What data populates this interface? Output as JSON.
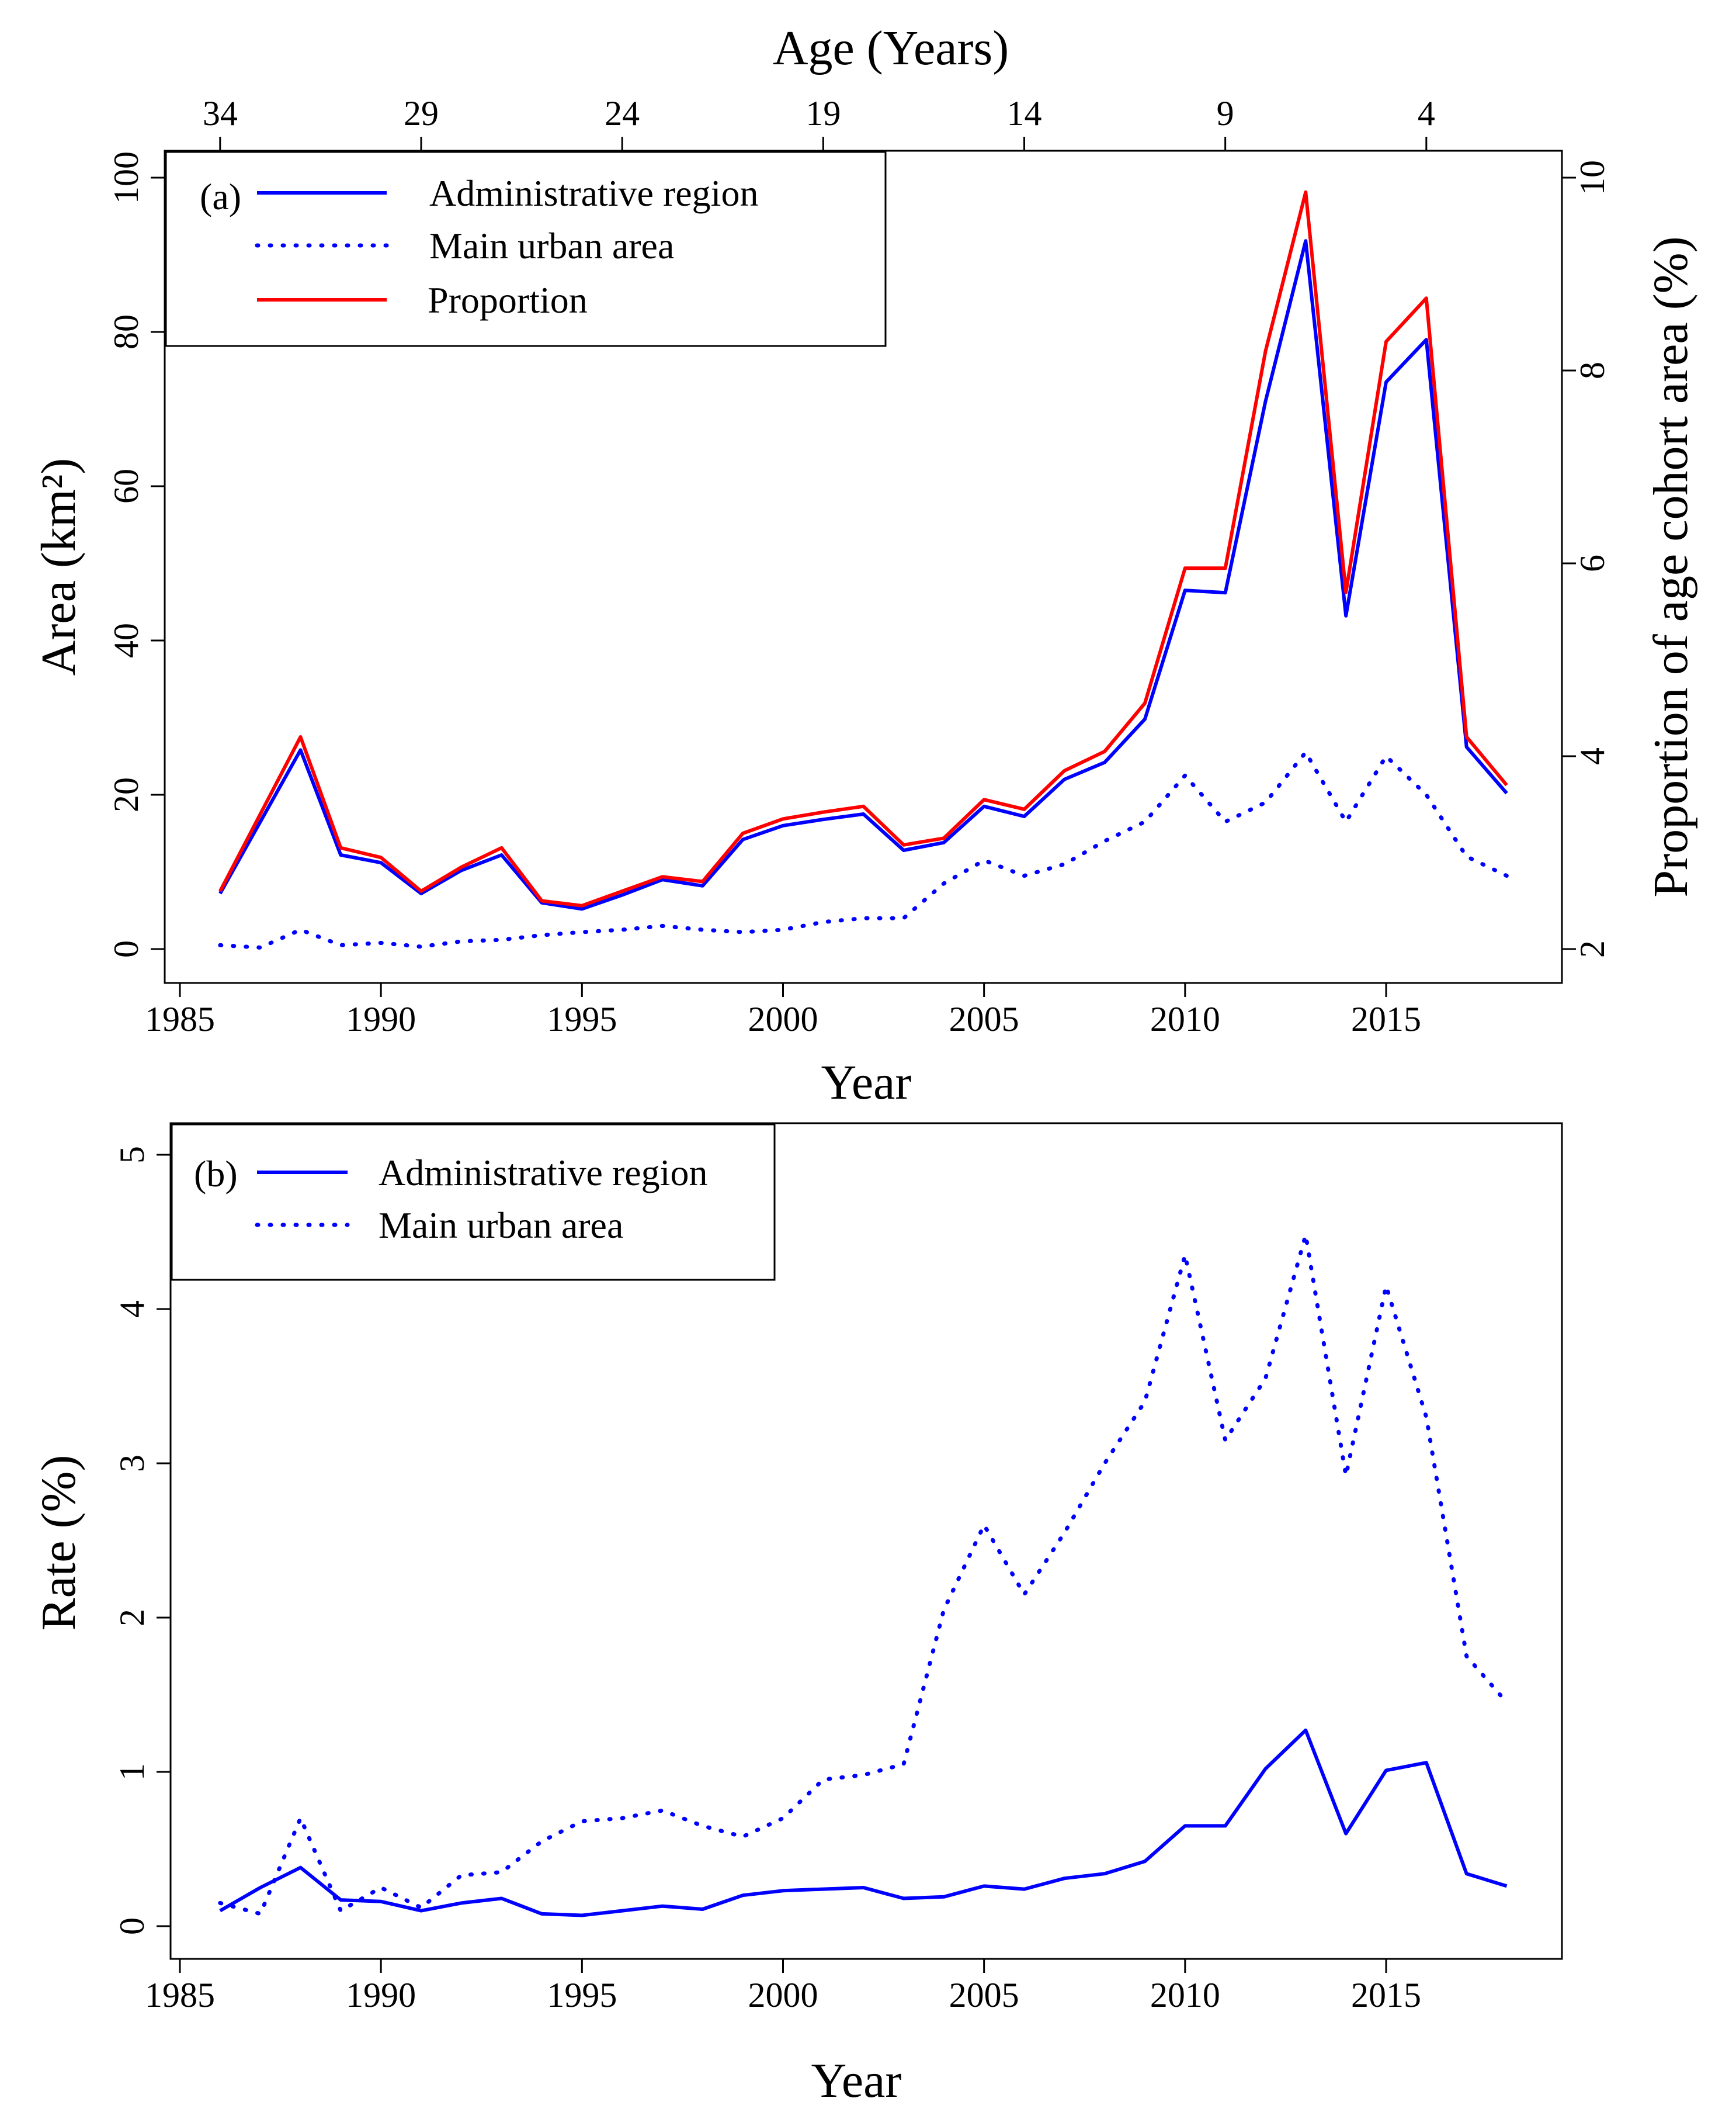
{
  "chart_data": [
    {
      "panel": "a",
      "type": "line",
      "panel_label": "(a)",
      "x": [
        1986,
        1987,
        1988,
        1989,
        1990,
        1991,
        1992,
        1993,
        1994,
        1995,
        1996,
        1997,
        1998,
        1999,
        2000,
        2001,
        2002,
        2003,
        2004,
        2005,
        2006,
        2007,
        2008,
        2009,
        2010,
        2011,
        2012,
        2013,
        2014,
        2015,
        2016,
        2017,
        2018
      ],
      "xlabel": "Year",
      "xlim": [
        1985,
        2018
      ],
      "xticks": [
        1985,
        1990,
        1995,
        2000,
        2005,
        2010,
        2015
      ],
      "top_axis": {
        "label": "Age (Years)",
        "ticks": [
          {
            "year": 1986,
            "label": "34"
          },
          {
            "year": 1991,
            "label": "29"
          },
          {
            "year": 1996,
            "label": "24"
          },
          {
            "year": 2001,
            "label": "19"
          },
          {
            "year": 2006,
            "label": "14"
          },
          {
            "year": 2011,
            "label": "9"
          },
          {
            "year": 2016,
            "label": "4"
          }
        ]
      },
      "ylabel": "Area (km²)",
      "ylim": [
        0,
        100
      ],
      "yticks": [
        0,
        20,
        40,
        60,
        80,
        100
      ],
      "y2label": "Proportion of age cohort area (%)",
      "y2lim": [
        2,
        10
      ],
      "y2ticks": [
        2,
        4,
        6,
        8,
        10
      ],
      "series": [
        {
          "name": "Administrative region",
          "style": "solid",
          "color": "#0000ff",
          "axis": "left",
          "values": [
            7.2,
            16.5,
            25.8,
            12.2,
            11.2,
            7.2,
            10.2,
            12.2,
            6.0,
            5.2,
            7.0,
            9.0,
            8.2,
            14.2,
            16.0,
            16.8,
            17.5,
            12.8,
            13.8,
            18.5,
            17.2,
            22.0,
            24.2,
            29.8,
            46.5,
            46.2,
            71.0,
            91.8,
            43.2,
            73.5,
            79.0,
            26.2,
            20.2
          ]
        },
        {
          "name": "Main urban area",
          "style": "dotted",
          "color": "#0000ff",
          "axis": "left",
          "values": [
            0.5,
            0.2,
            2.5,
            0.5,
            0.8,
            0.3,
            1.0,
            1.2,
            1.8,
            2.2,
            2.5,
            3.0,
            2.5,
            2.2,
            2.5,
            3.5,
            4.0,
            4.0,
            8.5,
            11.5,
            9.5,
            11.0,
            14.0,
            16.5,
            22.5,
            16.5,
            19.0,
            25.5,
            16.5,
            25.0,
            20.0,
            12.0,
            9.5
          ]
        },
        {
          "name": "Proportion",
          "style": "solid",
          "color": "#ff0000",
          "axis": "right",
          "values": [
            2.6,
            3.4,
            4.2,
            3.05,
            2.95,
            2.6,
            2.85,
            3.05,
            2.5,
            2.45,
            2.6,
            2.75,
            2.7,
            3.2,
            3.35,
            3.42,
            3.48,
            3.08,
            3.15,
            3.55,
            3.45,
            3.85,
            4.05,
            4.55,
            5.95,
            5.95,
            8.2,
            9.85,
            5.7,
            8.3,
            8.75,
            4.2,
            3.7
          ]
        }
      ],
      "legend": {
        "position": "top-left",
        "entries": [
          "Administrative region",
          "Main urban area",
          "Proportion"
        ]
      }
    },
    {
      "panel": "b",
      "type": "line",
      "panel_label": "(b)",
      "x": [
        1986,
        1987,
        1988,
        1989,
        1990,
        1991,
        1992,
        1993,
        1994,
        1995,
        1996,
        1997,
        1998,
        1999,
        2000,
        2001,
        2002,
        2003,
        2004,
        2005,
        2006,
        2007,
        2008,
        2009,
        2010,
        2011,
        2012,
        2013,
        2014,
        2015,
        2016,
        2017,
        2018
      ],
      "xlabel": "Year",
      "xlim": [
        1985,
        2018
      ],
      "xticks": [
        1985,
        1990,
        1995,
        2000,
        2005,
        2010,
        2015
      ],
      "ylabel": "Rate (%)",
      "ylim": [
        0,
        5
      ],
      "yticks": [
        0,
        1,
        2,
        3,
        4,
        5
      ],
      "series": [
        {
          "name": "Administrative region",
          "style": "solid",
          "color": "#0000ff",
          "values": [
            0.1,
            0.25,
            0.38,
            0.17,
            0.16,
            0.1,
            0.15,
            0.18,
            0.08,
            0.07,
            0.1,
            0.13,
            0.11,
            0.2,
            0.23,
            0.24,
            0.25,
            0.18,
            0.19,
            0.26,
            0.24,
            0.31,
            0.34,
            0.42,
            0.65,
            0.65,
            1.02,
            1.27,
            0.6,
            1.01,
            1.06,
            0.34,
            0.26
          ]
        },
        {
          "name": "Main urban area",
          "style": "dotted",
          "color": "#0000ff",
          "values": [
            0.15,
            0.08,
            0.7,
            0.1,
            0.25,
            0.12,
            0.33,
            0.35,
            0.55,
            0.68,
            0.7,
            0.75,
            0.65,
            0.58,
            0.7,
            0.95,
            0.98,
            1.05,
            2.05,
            2.6,
            2.15,
            2.55,
            3.0,
            3.4,
            4.35,
            3.15,
            3.55,
            4.48,
            2.92,
            4.15,
            3.3,
            1.75,
            1.45
          ]
        }
      ],
      "legend": {
        "position": "top-left",
        "entries": [
          "Administrative region",
          "Main urban area"
        ]
      }
    }
  ]
}
